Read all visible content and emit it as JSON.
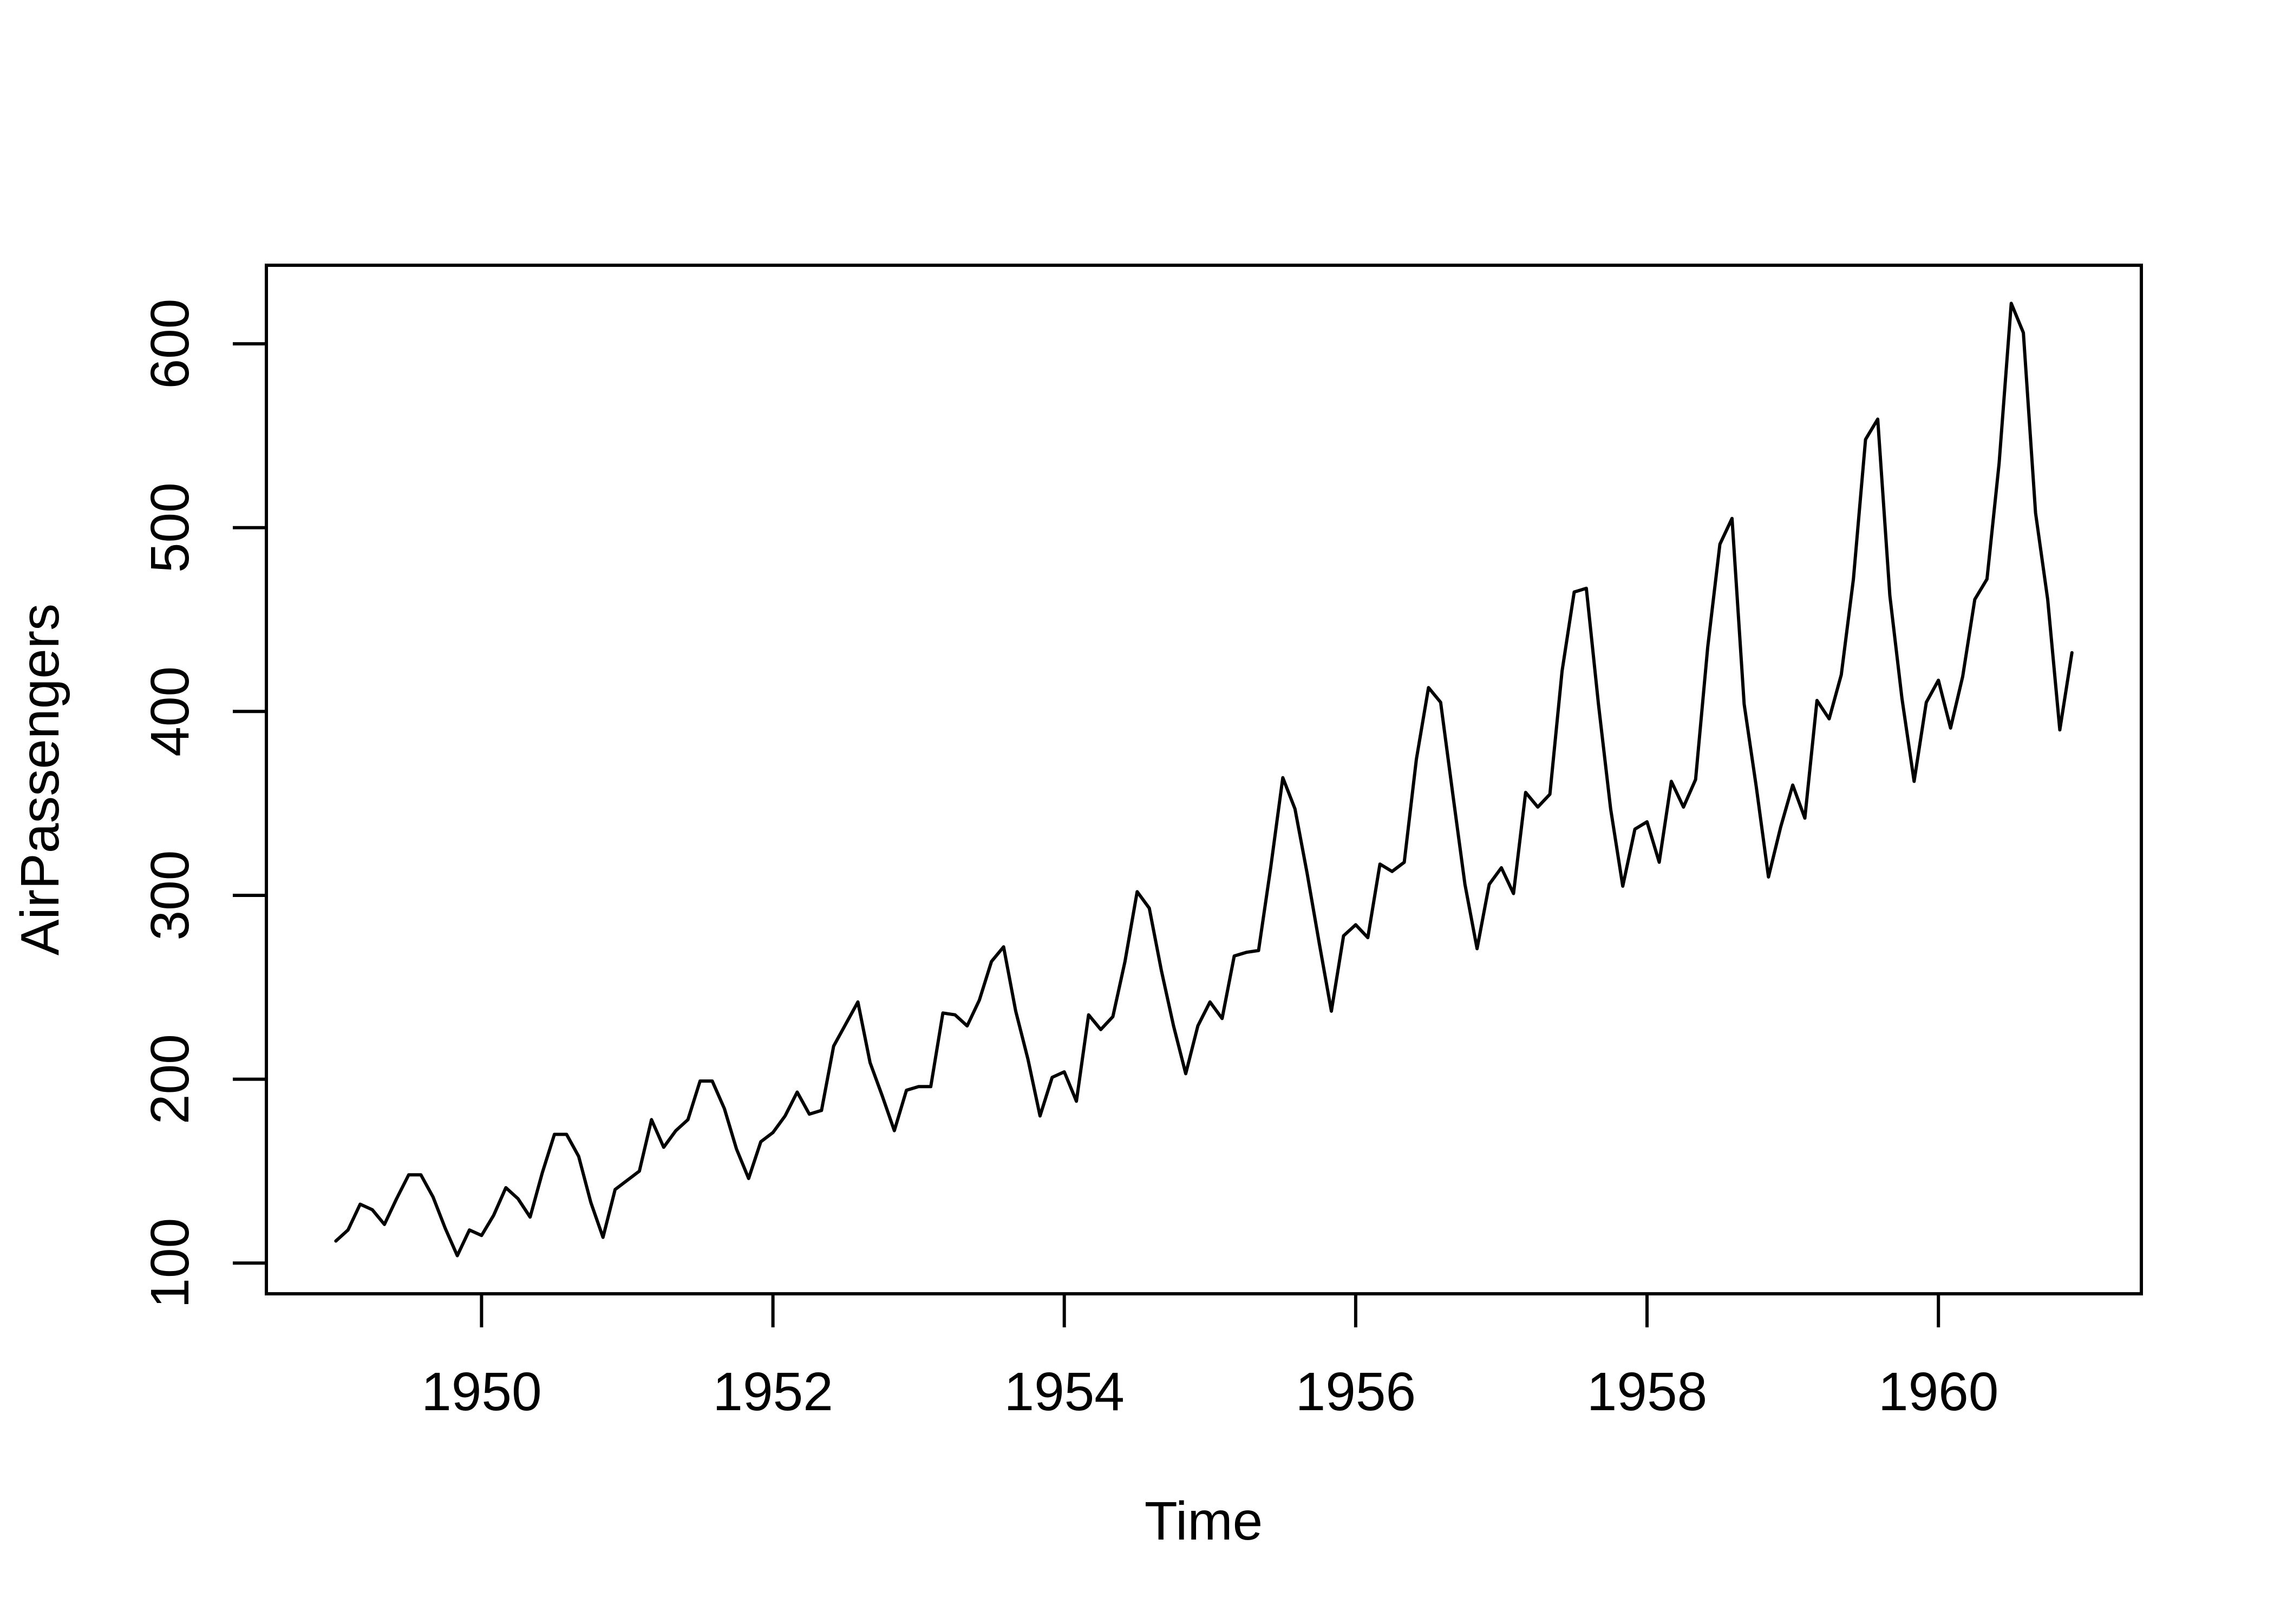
{
  "figure": {
    "background": "#ffffff"
  },
  "chart_data": {
    "type": "line",
    "title": "",
    "xlabel": "Time",
    "ylabel": "AirPassengers",
    "series_name": "AirPassengers",
    "x_start": 1949,
    "frequency": 12,
    "values": [
      112,
      118,
      132,
      129,
      121,
      135,
      148,
      148,
      136,
      119,
      104,
      118,
      115,
      126,
      141,
      135,
      125,
      149,
      170,
      170,
      158,
      133,
      114,
      140,
      145,
      150,
      178,
      163,
      172,
      178,
      199,
      199,
      184,
      162,
      146,
      166,
      171,
      180,
      193,
      181,
      183,
      218,
      230,
      242,
      209,
      191,
      172,
      194,
      196,
      196,
      236,
      235,
      229,
      243,
      264,
      272,
      237,
      211,
      180,
      201,
      204,
      188,
      235,
      227,
      234,
      264,
      302,
      293,
      259,
      229,
      203,
      229,
      242,
      233,
      267,
      269,
      270,
      315,
      364,
      347,
      312,
      274,
      237,
      278,
      284,
      277,
      317,
      313,
      318,
      374,
      413,
      405,
      355,
      306,
      271,
      306,
      315,
      301,
      356,
      348,
      355,
      422,
      465,
      467,
      404,
      347,
      305,
      336,
      340,
      318,
      362,
      348,
      363,
      435,
      491,
      505,
      404,
      359,
      310,
      337,
      360,
      342,
      406,
      396,
      420,
      472,
      548,
      559,
      463,
      407,
      362,
      405,
      417,
      391,
      419,
      461,
      472,
      535,
      622,
      606,
      508,
      461,
      390,
      432
    ],
    "x_ticks": [
      1950,
      1952,
      1954,
      1956,
      1958,
      1960
    ],
    "y_ticks": [
      100,
      200,
      300,
      400,
      500,
      600
    ],
    "x_range": [
      1949,
      1960.917
    ],
    "y_range": [
      104,
      622
    ],
    "xlim": [
      1948.523,
      1961.393
    ],
    "ylim": [
      83.28,
      642.72
    ],
    "grid": false,
    "legend": "none",
    "line_color": "#000000",
    "axis_color": "#000000",
    "text_color": "#000000"
  }
}
